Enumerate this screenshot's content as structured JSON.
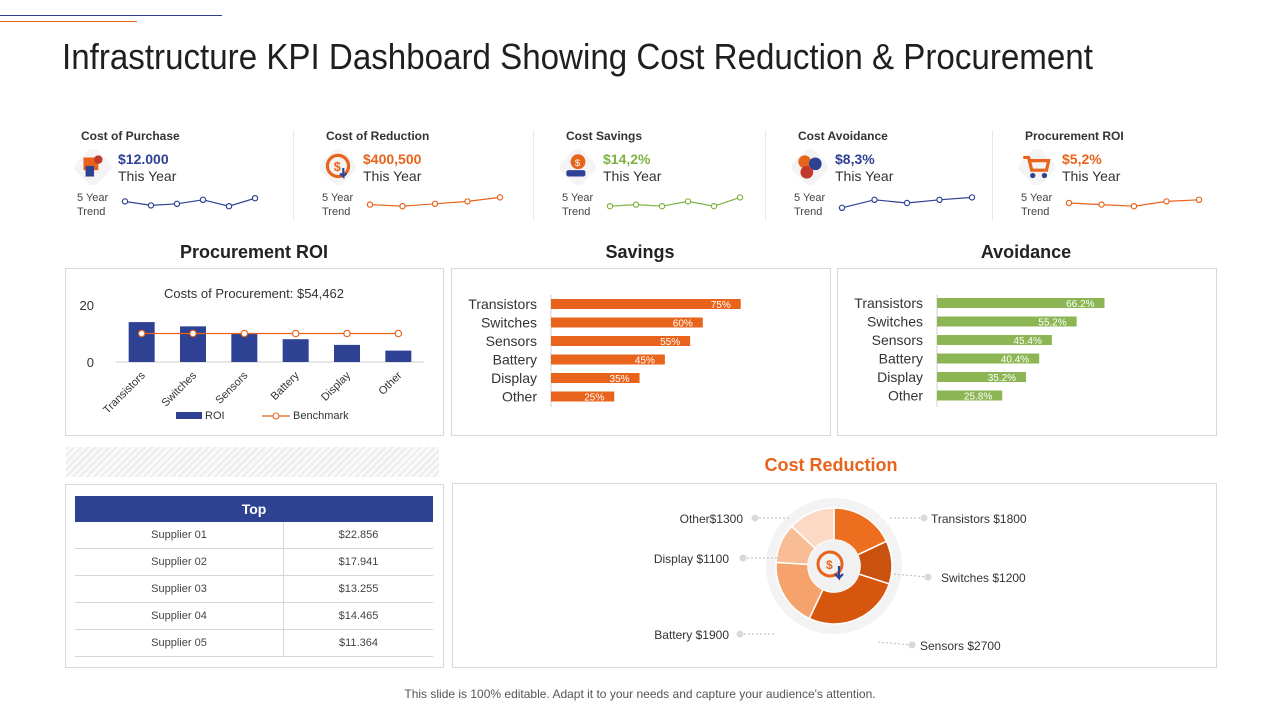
{
  "title": "Infrastructure KPI Dashboard Showing Cost Reduction & Procurement",
  "colors": {
    "blue": "#2e4193",
    "orange": "#e8631b",
    "green": "#7cb342",
    "dark": "#222222"
  },
  "kpis": [
    {
      "label": "Cost of Purchase",
      "value": "$12.000",
      "period": "This Year",
      "trend_line1": "5 Year",
      "trend_line2": "Trend",
      "color": "#2e4193",
      "icon": "purchase-icon",
      "trend": [
        60,
        35,
        45,
        70,
        30,
        80
      ]
    },
    {
      "label": "Cost of Reduction",
      "value": "$400,500",
      "period": "This Year",
      "trend_line1": "5 Year",
      "trend_line2": "Trend",
      "color": "#e8631b",
      "icon": "reduction-icon",
      "trend": [
        40,
        30,
        45,
        60,
        85
      ]
    },
    {
      "label": "Cost Savings",
      "value": "$14,2%",
      "period": "This Year",
      "trend_line1": "5 Year",
      "trend_line2": "Trend",
      "color": "#7cb342",
      "icon": "savings-icon",
      "trend": [
        30,
        40,
        30,
        60,
        30,
        85
      ]
    },
    {
      "label": "Cost Avoidance",
      "value": "$8,3%",
      "period": "This Year",
      "trend_line1": "5 Year",
      "trend_line2": "Trend",
      "color": "#2e4193",
      "icon": "avoidance-icon",
      "trend": [
        20,
        70,
        50,
        70,
        85
      ]
    },
    {
      "label": "Procurement ROI",
      "value": "$5,2%",
      "period": "This Year",
      "trend_line1": "5 Year",
      "trend_line2": "Trend",
      "color": "#e8631b",
      "icon": "cart-icon",
      "trend": [
        50,
        40,
        30,
        60,
        70
      ]
    }
  ],
  "sections": {
    "procurement_roi": "Procurement ROI",
    "savings": "Savings",
    "avoidance": "Avoidance",
    "cost_reduction": "Cost Reduction"
  },
  "chart_data": [
    {
      "type": "bar",
      "title": "Costs of Procurement: $54,462",
      "categories": [
        "Transistors",
        "Switches",
        "Sensors",
        "Battery",
        "Display",
        "Other"
      ],
      "series": [
        {
          "name": "ROI",
          "type": "bar",
          "values": [
            14,
            12.5,
            10,
            8,
            6,
            4
          ]
        },
        {
          "name": "Benchmark",
          "type": "line",
          "values": [
            10,
            10,
            10,
            10,
            10,
            10
          ]
        }
      ],
      "ylim": [
        0,
        20
      ],
      "yticks": [
        0,
        20
      ],
      "legend": [
        "ROI",
        "Benchmark"
      ]
    },
    {
      "type": "bar",
      "orientation": "horizontal",
      "title": "Savings",
      "categories": [
        "Transistors",
        "Switches",
        "Sensors",
        "Battery",
        "Display",
        "Other"
      ],
      "values": [
        75,
        60,
        55,
        45,
        35,
        25
      ],
      "labels": [
        "75%",
        "60%",
        "55%",
        "45%",
        "35%",
        "25%"
      ],
      "color": "#e8631b"
    },
    {
      "type": "bar",
      "orientation": "horizontal",
      "title": "Avoidance",
      "categories": [
        "Transistors",
        "Switches",
        "Sensors",
        "Battery",
        "Display",
        "Other"
      ],
      "values": [
        66.2,
        55.2,
        45.4,
        40.4,
        35.2,
        25.8
      ],
      "labels": [
        "66.2%",
        "55.2%",
        "45.4%",
        "40.4%",
        "35.2%",
        "25.8%"
      ],
      "color": "#8cb654"
    },
    {
      "type": "pie",
      "title": "Cost Reduction",
      "slices": [
        {
          "name": "Transistors",
          "value": 1800,
          "label": "Transistors $1800",
          "color": "#ee6e1f"
        },
        {
          "name": "Switches",
          "value": 1200,
          "label": "Switches $1200",
          "color": "#c9520f"
        },
        {
          "name": "Sensors",
          "value": 2700,
          "label": "Sensors $2700",
          "color": "#d6560d"
        },
        {
          "name": "Battery",
          "value": 1900,
          "label": "Battery $1900",
          "color": "#f6a26c"
        },
        {
          "name": "Display",
          "value": 1100,
          "label": "Display $1100",
          "color": "#f8bd95"
        },
        {
          "name": "Other",
          "value": 1300,
          "label": "Other$1300",
          "color": "#fbd9c4"
        }
      ]
    }
  ],
  "table": {
    "header": "Top",
    "rows": [
      {
        "name": "Supplier 01",
        "value": "$22.856"
      },
      {
        "name": "Supplier 02",
        "value": "$17.941"
      },
      {
        "name": "Supplier 03",
        "value": "$13.255"
      },
      {
        "name": "Supplier 04",
        "value": "$14.465"
      },
      {
        "name": "Supplier 05",
        "value": "$11.364"
      }
    ]
  },
  "footer": "This slide is 100% editable. Adapt it to your needs and capture your audience's attention."
}
